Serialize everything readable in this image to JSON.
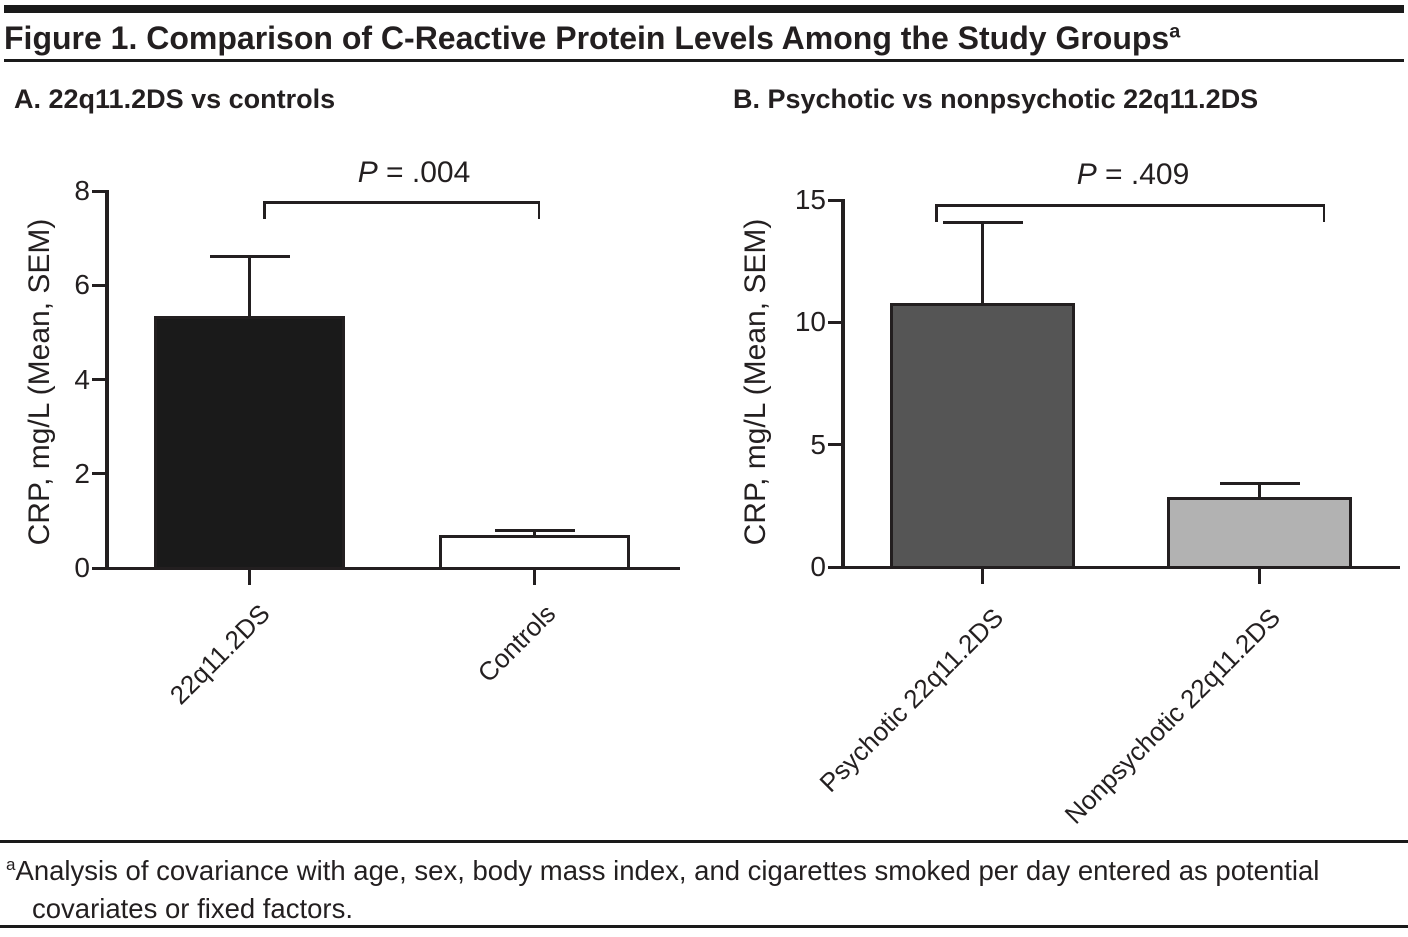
{
  "figure_title": {
    "text": "Figure 1. Comparison of C-Reactive Protein Levels Among the Study Groups",
    "superscript": "a"
  },
  "footnote": {
    "marker": "a",
    "text": "Analysis of covariance with age, sex, body mass index, and cigarettes smoked per day entered as potential covariates or fixed factors."
  },
  "colors": {
    "ink": "#231f20",
    "rule": "#1a1a1a"
  },
  "chart_data": [
    {
      "id": "A",
      "type": "bar",
      "title": "A. 22q11.2DS vs controls",
      "ylabel": "CRP, mg/L (Mean, SEM)",
      "xlabel": "",
      "ylim": [
        0,
        8
      ],
      "yticks": [
        0,
        2,
        4,
        6,
        8
      ],
      "grid": false,
      "legend": false,
      "categories": [
        "22q11.2DS",
        "Controls"
      ],
      "values": [
        5.35,
        0.7
      ],
      "sem_top": [
        6.6,
        0.8
      ],
      "bar_colors": [
        "#1a1a1a",
        "#ffffff"
      ],
      "error_bar_style": "mean + SEM",
      "p_label": {
        "symbol": "P",
        "rest": " = .004"
      }
    },
    {
      "id": "B",
      "type": "bar",
      "title": "B. Psychotic vs nonpsychotic 22q11.2DS",
      "ylabel": "CRP, mg/L (Mean, SEM)",
      "xlabel": "",
      "ylim": [
        0,
        15
      ],
      "yticks": [
        0,
        5,
        10,
        15
      ],
      "grid": false,
      "legend": false,
      "categories": [
        "Psychotic 22q11.2DS",
        "Nonpsychotic 22q11.2DS"
      ],
      "values": [
        10.8,
        2.85
      ],
      "sem_top": [
        14.1,
        3.4
      ],
      "bar_colors": [
        "#555555",
        "#b2b2b2"
      ],
      "error_bar_style": "mean + SEM",
      "p_label": {
        "symbol": "P",
        "rest": " = .409"
      }
    }
  ]
}
